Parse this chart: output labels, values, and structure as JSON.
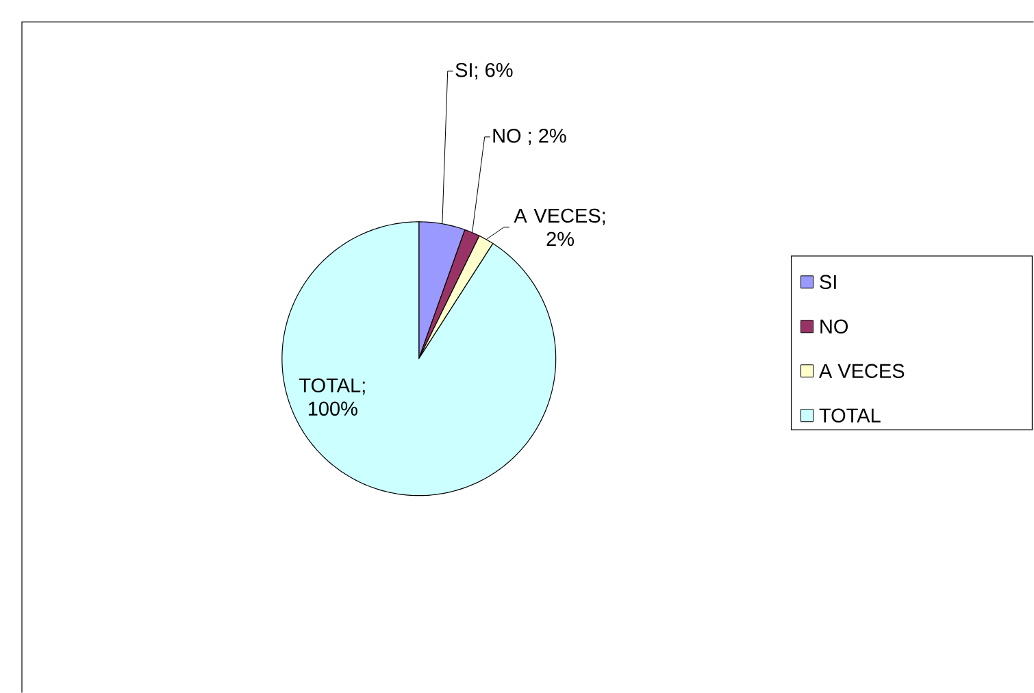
{
  "chart_data": {
    "type": "pie",
    "categories": [
      "SI",
      "NO",
      "A VECES",
      "TOTAL"
    ],
    "values": [
      6,
      2,
      2,
      100
    ],
    "colors": [
      "#9999ff",
      "#993366",
      "#ffffcc",
      "#ccffff"
    ],
    "value_labels": [
      "SI; 6%",
      "NO ; 2%",
      "A VECES; 2%",
      "TOTAL; 100%"
    ],
    "legend": "right"
  }
}
